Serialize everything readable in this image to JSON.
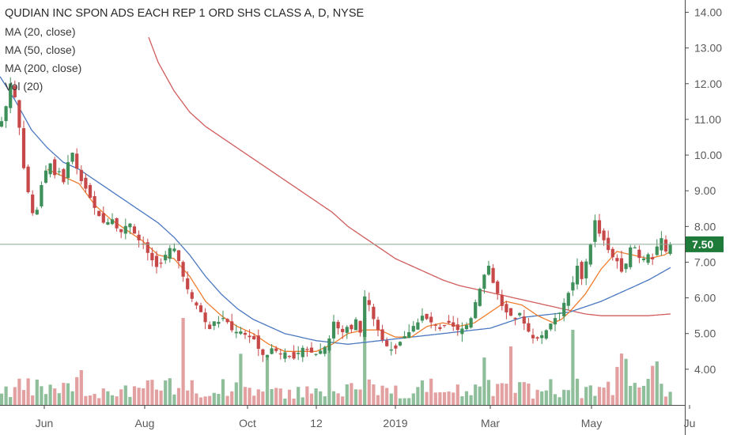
{
  "legend": {
    "title": "QUDIAN INC SPON ADS EACH REP 1 ORD SHS CLASS A, D, NYSE",
    "ma20": "MA (20, close)",
    "ma50": "MA (50, close)",
    "ma200": "MA (200, close)",
    "vol": "Vol (20)"
  },
  "colors": {
    "up": "#3f8f5a",
    "down": "#c74848",
    "vol_up": "#8fbf9a",
    "vol_down": "#e3a0a0",
    "ma20": "#f07d2e",
    "ma50": "#4a78c0",
    "ma200": "#d05c5c",
    "price_badge": "#1e7b3a",
    "price_line": "#8aa890",
    "axis": "#4a4a4a"
  },
  "current_price": {
    "value": 7.5,
    "label": "7.50"
  },
  "chart_data": {
    "type": "candlestick",
    "y_axis": {
      "ticks": [
        "4.00",
        "5.00",
        "6.00",
        "7.00",
        "8.00",
        "9.00",
        "10.00",
        "11.00",
        "12.00",
        "13.00",
        "14.00"
      ],
      "range": [
        3.0,
        14.3
      ]
    },
    "x_axis": {
      "ticks": [
        "Jun",
        "Aug",
        "Oct",
        "12",
        "2019",
        "Mar",
        "May",
        "Ju"
      ]
    },
    "price_anchors": [
      [
        0,
        10.8
      ],
      [
        8,
        11.4
      ],
      [
        14,
        12.1
      ],
      [
        20,
        11.5
      ],
      [
        26,
        10.5
      ],
      [
        32,
        9.2
      ],
      [
        38,
        8.8
      ],
      [
        44,
        8.0
      ],
      [
        50,
        9.0
      ],
      [
        56,
        9.4
      ],
      [
        62,
        9.9
      ],
      [
        68,
        9.4
      ],
      [
        74,
        9.6
      ],
      [
        80,
        9.2
      ],
      [
        86,
        9.8
      ],
      [
        90,
        10.2
      ],
      [
        96,
        9.7
      ],
      [
        102,
        9.3
      ],
      [
        110,
        9.0
      ],
      [
        116,
        8.7
      ],
      [
        122,
        8.4
      ],
      [
        128,
        8.2
      ],
      [
        134,
        8.0
      ],
      [
        140,
        8.3
      ],
      [
        146,
        8.0
      ],
      [
        152,
        7.8
      ],
      [
        158,
        8.0
      ],
      [
        164,
        8.1
      ],
      [
        170,
        7.8
      ],
      [
        176,
        7.6
      ],
      [
        182,
        7.5
      ],
      [
        188,
        7.2
      ],
      [
        194,
        7.0
      ],
      [
        200,
        6.8
      ],
      [
        206,
        7.1
      ],
      [
        212,
        7.3
      ],
      [
        218,
        7.5
      ],
      [
        224,
        7.2
      ],
      [
        230,
        6.7
      ],
      [
        236,
        6.3
      ],
      [
        242,
        6.0
      ],
      [
        248,
        5.8
      ],
      [
        254,
        5.6
      ],
      [
        260,
        5.3
      ],
      [
        266,
        5.1
      ],
      [
        272,
        5.4
      ],
      [
        278,
        5.3
      ],
      [
        284,
        5.5
      ],
      [
        290,
        5.2
      ],
      [
        296,
        5.0
      ],
      [
        302,
        5.1
      ],
      [
        308,
        5.0
      ],
      [
        314,
        4.9
      ],
      [
        320,
        4.9
      ],
      [
        326,
        4.6
      ],
      [
        332,
        4.4
      ],
      [
        338,
        4.4
      ],
      [
        344,
        4.6
      ],
      [
        350,
        4.5
      ],
      [
        356,
        4.4
      ],
      [
        362,
        4.5
      ],
      [
        368,
        4.3
      ],
      [
        374,
        4.3
      ],
      [
        380,
        4.6
      ],
      [
        386,
        4.6
      ],
      [
        392,
        4.5
      ],
      [
        398,
        4.4
      ],
      [
        404,
        4.5
      ],
      [
        410,
        4.6
      ],
      [
        416,
        4.8
      ],
      [
        420,
        5.4
      ],
      [
        426,
        5.2
      ],
      [
        432,
        5.0
      ],
      [
        438,
        5.2
      ],
      [
        444,
        5.1
      ],
      [
        450,
        5.4
      ],
      [
        456,
        5.0
      ],
      [
        462,
        6.2
      ],
      [
        468,
        5.7
      ],
      [
        474,
        5.3
      ],
      [
        480,
        5.0
      ],
      [
        486,
        4.7
      ],
      [
        492,
        4.6
      ],
      [
        498,
        4.5
      ],
      [
        504,
        4.7
      ],
      [
        510,
        4.9
      ],
      [
        516,
        5.0
      ],
      [
        522,
        5.2
      ],
      [
        528,
        5.3
      ],
      [
        534,
        5.5
      ],
      [
        540,
        5.4
      ],
      [
        546,
        5.3
      ],
      [
        552,
        5.2
      ],
      [
        558,
        5.1
      ],
      [
        564,
        5.3
      ],
      [
        570,
        5.3
      ],
      [
        576,
        5.1
      ],
      [
        582,
        5.1
      ],
      [
        588,
        5.2
      ],
      [
        594,
        5.3
      ],
      [
        600,
        5.8
      ],
      [
        606,
        6.2
      ],
      [
        612,
        6.6
      ],
      [
        616,
        7.1
      ],
      [
        622,
        6.5
      ],
      [
        628,
        6.2
      ],
      [
        634,
        5.8
      ],
      [
        640,
        5.6
      ],
      [
        646,
        5.5
      ],
      [
        652,
        5.4
      ],
      [
        658,
        5.6
      ],
      [
        664,
        5.2
      ],
      [
        670,
        5.0
      ],
      [
        676,
        4.8
      ],
      [
        682,
        4.9
      ],
      [
        688,
        5.0
      ],
      [
        694,
        5.2
      ],
      [
        700,
        5.4
      ],
      [
        706,
        5.5
      ],
      [
        712,
        5.8
      ],
      [
        718,
        6.1
      ],
      [
        724,
        6.4
      ],
      [
        730,
        6.9
      ],
      [
        736,
        6.5
      ],
      [
        742,
        7.1
      ],
      [
        748,
        7.6
      ],
      [
        752,
        8.2
      ],
      [
        758,
        7.8
      ],
      [
        764,
        7.6
      ],
      [
        770,
        7.3
      ],
      [
        776,
        7.1
      ],
      [
        782,
        7.0
      ],
      [
        788,
        6.6
      ],
      [
        794,
        7.2
      ],
      [
        800,
        7.6
      ],
      [
        806,
        7.2
      ],
      [
        812,
        7.0
      ],
      [
        818,
        7.3
      ],
      [
        824,
        7.0
      ],
      [
        830,
        7.4
      ],
      [
        836,
        7.7
      ],
      [
        842,
        7.3
      ],
      [
        848,
        7.5
      ]
    ],
    "ma20_anchors": [
      [
        60,
        9.6
      ],
      [
        80,
        9.4
      ],
      [
        100,
        9.2
      ],
      [
        120,
        8.6
      ],
      [
        140,
        8.2
      ],
      [
        160,
        7.9
      ],
      [
        180,
        7.6
      ],
      [
        200,
        7.2
      ],
      [
        220,
        7.1
      ],
      [
        240,
        6.6
      ],
      [
        260,
        5.9
      ],
      [
        280,
        5.5
      ],
      [
        300,
        5.2
      ],
      [
        320,
        5.0
      ],
      [
        340,
        4.7
      ],
      [
        360,
        4.5
      ],
      [
        380,
        4.5
      ],
      [
        400,
        4.5
      ],
      [
        420,
        4.7
      ],
      [
        440,
        5.0
      ],
      [
        460,
        5.1
      ],
      [
        480,
        5.1
      ],
      [
        500,
        4.9
      ],
      [
        520,
        4.9
      ],
      [
        540,
        5.2
      ],
      [
        560,
        5.3
      ],
      [
        580,
        5.2
      ],
      [
        600,
        5.3
      ],
      [
        620,
        5.6
      ],
      [
        640,
        5.9
      ],
      [
        660,
        5.8
      ],
      [
        680,
        5.5
      ],
      [
        700,
        5.3
      ],
      [
        710,
        5.4
      ],
      [
        720,
        5.6
      ],
      [
        740,
        6.1
      ],
      [
        760,
        6.8
      ],
      [
        780,
        7.3
      ],
      [
        800,
        7.2
      ],
      [
        820,
        7.1
      ],
      [
        840,
        7.2
      ],
      [
        848,
        7.3
      ]
    ],
    "ma50_anchors": [
      [
        0,
        12.2
      ],
      [
        20,
        11.5
      ],
      [
        40,
        10.7
      ],
      [
        60,
        10.2
      ],
      [
        80,
        9.8
      ],
      [
        100,
        9.6
      ],
      [
        120,
        9.3
      ],
      [
        140,
        9.0
      ],
      [
        160,
        8.7
      ],
      [
        180,
        8.4
      ],
      [
        200,
        8.1
      ],
      [
        220,
        7.7
      ],
      [
        240,
        7.2
      ],
      [
        260,
        6.6
      ],
      [
        280,
        6.1
      ],
      [
        300,
        5.7
      ],
      [
        320,
        5.4
      ],
      [
        340,
        5.2
      ],
      [
        360,
        5.0
      ],
      [
        380,
        4.9
      ],
      [
        400,
        4.8
      ],
      [
        420,
        4.75
      ],
      [
        440,
        4.7
      ],
      [
        460,
        4.75
      ],
      [
        480,
        4.8
      ],
      [
        500,
        4.85
      ],
      [
        520,
        4.9
      ],
      [
        540,
        4.95
      ],
      [
        560,
        5.0
      ],
      [
        580,
        5.05
      ],
      [
        600,
        5.1
      ],
      [
        620,
        5.15
      ],
      [
        640,
        5.3
      ],
      [
        660,
        5.45
      ],
      [
        680,
        5.5
      ],
      [
        700,
        5.55
      ],
      [
        720,
        5.6
      ],
      [
        740,
        5.75
      ],
      [
        760,
        5.9
      ],
      [
        780,
        6.1
      ],
      [
        800,
        6.3
      ],
      [
        820,
        6.5
      ],
      [
        840,
        6.75
      ],
      [
        848,
        6.85
      ]
    ],
    "ma200_anchors": [
      [
        188,
        13.3
      ],
      [
        200,
        12.6
      ],
      [
        220,
        11.8
      ],
      [
        240,
        11.2
      ],
      [
        260,
        10.8
      ],
      [
        280,
        10.5
      ],
      [
        300,
        10.2
      ],
      [
        320,
        9.9
      ],
      [
        340,
        9.6
      ],
      [
        360,
        9.3
      ],
      [
        380,
        9.0
      ],
      [
        400,
        8.7
      ],
      [
        420,
        8.4
      ],
      [
        440,
        8.0
      ],
      [
        460,
        7.7
      ],
      [
        480,
        7.4
      ],
      [
        500,
        7.1
      ],
      [
        520,
        6.9
      ],
      [
        540,
        6.7
      ],
      [
        560,
        6.5
      ],
      [
        580,
        6.35
      ],
      [
        600,
        6.25
      ],
      [
        620,
        6.15
      ],
      [
        640,
        6.05
      ],
      [
        660,
        5.95
      ],
      [
        680,
        5.85
      ],
      [
        700,
        5.75
      ],
      [
        720,
        5.65
      ],
      [
        740,
        5.55
      ],
      [
        760,
        5.5
      ],
      [
        780,
        5.5
      ],
      [
        800,
        5.5
      ],
      [
        820,
        5.5
      ],
      [
        848,
        5.55
      ]
    ]
  }
}
